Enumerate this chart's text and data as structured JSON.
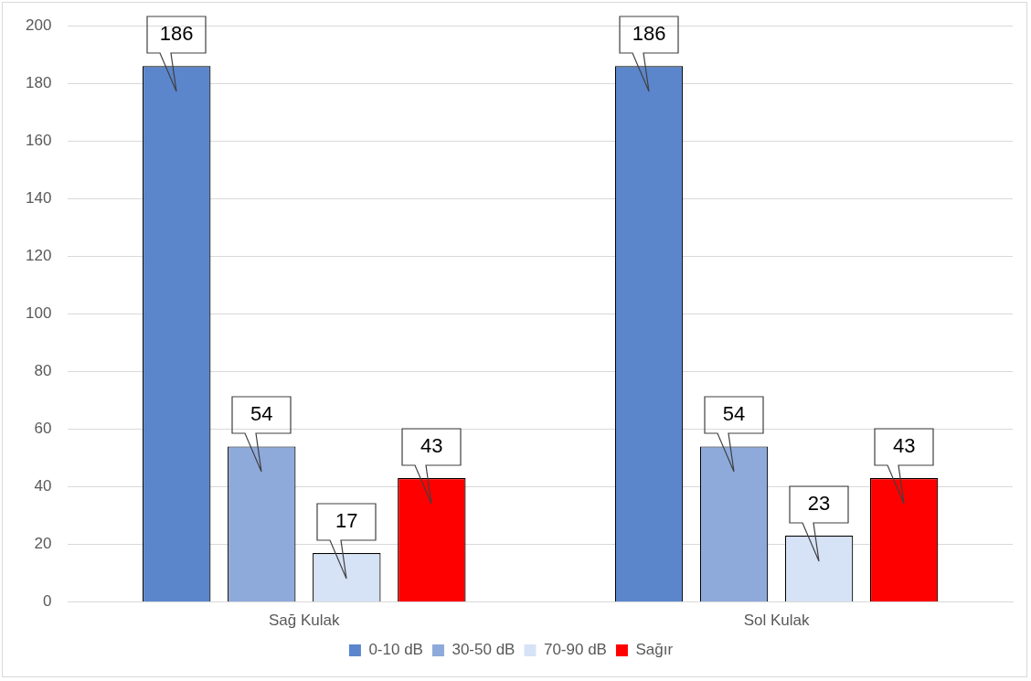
{
  "chart_data": {
    "type": "bar",
    "categories": [
      "Sağ Kulak",
      "Sol Kulak"
    ],
    "series": [
      {
        "name": "0-10 dB",
        "color": "#5b86cc",
        "values": [
          186,
          186
        ]
      },
      {
        "name": "30-50 dB",
        "color": "#8eaadb",
        "values": [
          54,
          54
        ]
      },
      {
        "name": "70-90 dB",
        "color": "#d6e2f5",
        "values": [
          17,
          23
        ]
      },
      {
        "name": "Sağır",
        "color": "#ff0000",
        "values": [
          43,
          43
        ]
      }
    ],
    "ylim": [
      0,
      200
    ],
    "yticks": [
      0,
      20,
      40,
      60,
      80,
      100,
      120,
      140,
      160,
      180,
      200
    ],
    "grid": "y",
    "legend": "bottom",
    "data_labels": true
  }
}
